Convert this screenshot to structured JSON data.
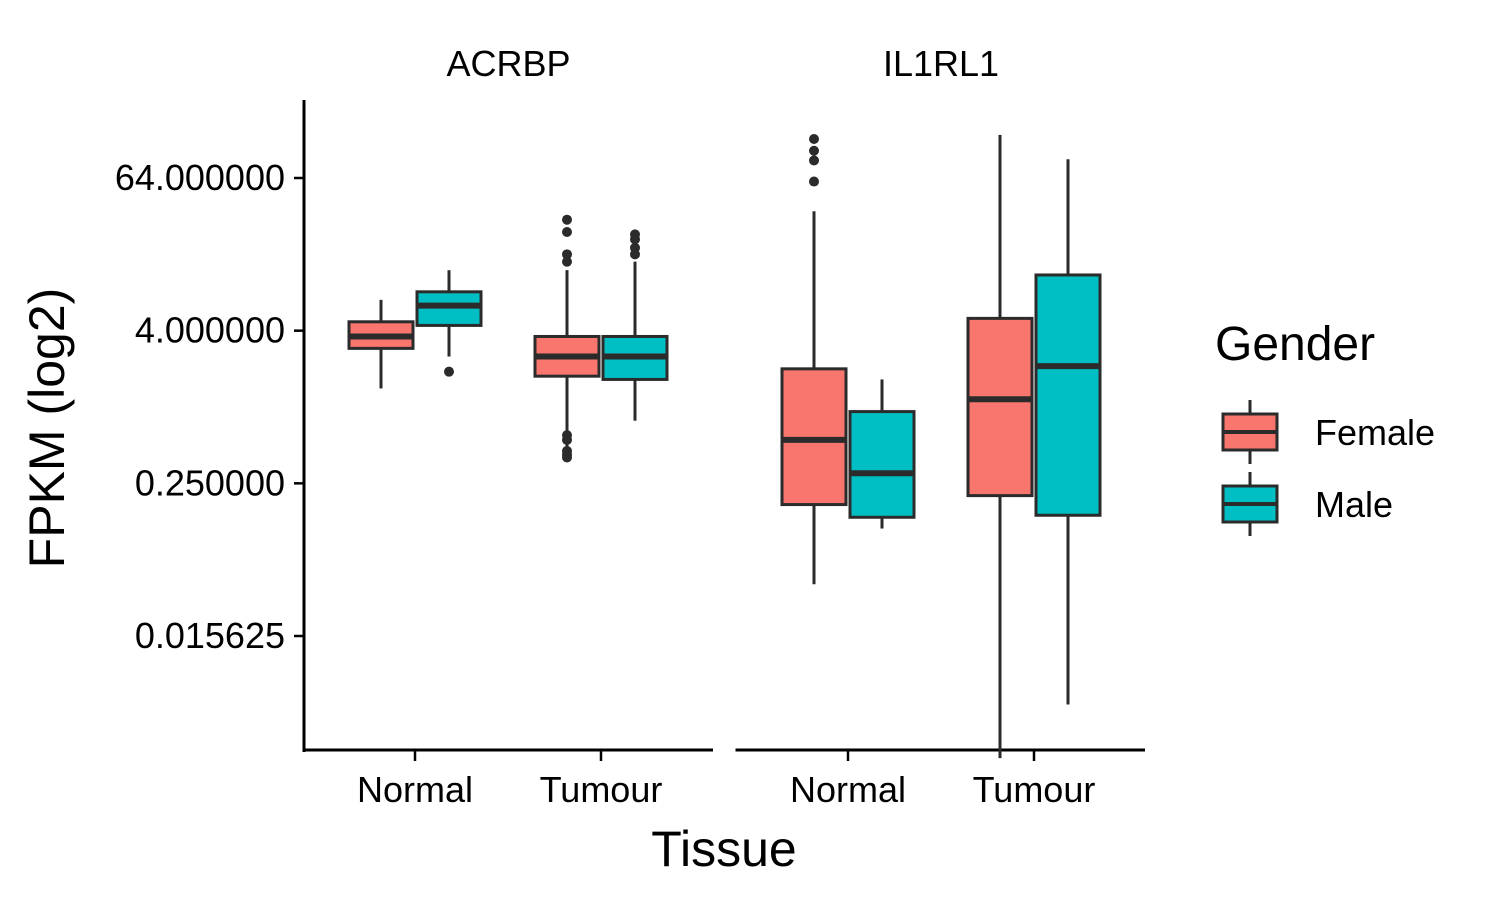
{
  "chart_data": {
    "type": "box",
    "title": "",
    "xlabel": "Tissue",
    "ylabel": "FPKM (log2)",
    "y_scale": "log2",
    "y_ticks": [
      0.015625,
      0.25,
      4,
      64
    ],
    "y_tick_labels": [
      "0.015625",
      "0.250000",
      "4.000000",
      "64.000000"
    ],
    "ylim": [
      0.0017,
      175
    ],
    "categories": [
      "Normal",
      "Tumour"
    ],
    "facets": [
      "ACRBP",
      "IL1RL1"
    ],
    "legend": {
      "title": "Gender",
      "position": "right",
      "entries": [
        {
          "name": "Female",
          "color": "#F8766D"
        },
        {
          "name": "Male",
          "color": "#00BFC4"
        }
      ]
    },
    "grid": false,
    "series": [
      {
        "facet": "ACRBP",
        "category": "Normal",
        "group": "Female",
        "whisker_low": 1.4,
        "q1": 2.9,
        "median": 3.6,
        "q3": 4.7,
        "whisker_high": 7.0,
        "outliers": []
      },
      {
        "facet": "ACRBP",
        "category": "Normal",
        "group": "Male",
        "whisker_low": 2.5,
        "q1": 4.4,
        "median": 6.3,
        "q3": 8.1,
        "whisker_high": 12.0,
        "outliers": [
          1.9
        ]
      },
      {
        "facet": "ACRBP",
        "category": "Tumour",
        "group": "Female",
        "whisker_low": 0.45,
        "q1": 1.75,
        "median": 2.5,
        "q3": 3.6,
        "whisker_high": 12.0,
        "outliers": [
          0.4,
          0.42,
          0.45,
          0.55,
          0.6,
          14,
          16,
          24,
          30
        ]
      },
      {
        "facet": "ACRBP",
        "category": "Tumour",
        "group": "Male",
        "whisker_low": 0.78,
        "q1": 1.65,
        "median": 2.5,
        "q3": 3.6,
        "whisker_high": 14.0,
        "outliers": [
          16,
          18,
          21,
          23
        ]
      },
      {
        "facet": "IL1RL1",
        "category": "Normal",
        "group": "Female",
        "whisker_low": 0.04,
        "q1": 0.17,
        "median": 0.55,
        "q3": 2.0,
        "whisker_high": 35.0,
        "outliers": [
          60,
          88,
          105,
          130
        ]
      },
      {
        "facet": "IL1RL1",
        "category": "Normal",
        "group": "Male",
        "whisker_low": 0.11,
        "q1": 0.135,
        "median": 0.3,
        "q3": 0.92,
        "whisker_high": 1.65,
        "outliers": []
      },
      {
        "facet": "IL1RL1",
        "category": "Tumour",
        "group": "Female",
        "whisker_low": 0.0017,
        "q1": 0.2,
        "median": 1.15,
        "q3": 5.0,
        "whisker_high": 140.0,
        "outliers": []
      },
      {
        "facet": "IL1RL1",
        "category": "Tumour",
        "group": "Male",
        "whisker_low": 0.0045,
        "q1": 0.14,
        "median": 2.1,
        "q3": 11.0,
        "whisker_high": 90.0,
        "outliers": []
      }
    ]
  }
}
